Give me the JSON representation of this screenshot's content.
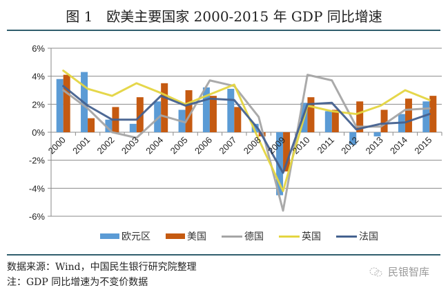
{
  "figure": {
    "title": "图 1　欧美主要国家 2000-2015 年 GDP 同比增速",
    "source": "数据来源：Wind，中国民生银行研究院整理",
    "note": "注：GDP 同比增速为不变价数据",
    "watermark": "民银智库"
  },
  "chart_data": {
    "type": "bar+line",
    "title": "欧美主要国家 2000-2015 年 GDP 同比增速",
    "xlabel": "",
    "ylabel": "",
    "ylim": [
      -6,
      6
    ],
    "yticks": [
      6,
      4,
      2,
      0,
      -2,
      -4,
      -6
    ],
    "ytick_labels": [
      "6%",
      "4%",
      "2%",
      "0%",
      "-2%",
      "-4%",
      "-6%"
    ],
    "grid": true,
    "legend_position": "bottom",
    "categories": [
      "2000",
      "2001",
      "2002",
      "2003",
      "2004",
      "2005",
      "2006",
      "2007",
      "2008",
      "2009",
      "2010",
      "2011",
      "2012",
      "2013",
      "2014",
      "2015"
    ],
    "series": [
      {
        "name": "欧元区",
        "kind": "bar",
        "color": "#5b9bd5",
        "values": [
          3.8,
          4.3,
          0.9,
          0.6,
          2.2,
          1.6,
          3.2,
          3.1,
          0.6,
          -4.5,
          2.1,
          1.5,
          -0.9,
          -0.3,
          1.3,
          2.2
        ]
      },
      {
        "name": "美国",
        "kind": "bar",
        "color": "#c55a11",
        "values": [
          4.1,
          1.0,
          1.8,
          2.5,
          3.5,
          3.0,
          2.6,
          1.8,
          -0.3,
          -2.8,
          2.5,
          1.6,
          2.2,
          1.6,
          2.4,
          2.6
        ]
      },
      {
        "name": "德国",
        "kind": "line",
        "color": "#a5a5a5",
        "values": [
          3.0,
          1.7,
          0.0,
          -0.4,
          1.2,
          0.7,
          3.7,
          3.3,
          1.1,
          -5.6,
          4.1,
          3.7,
          0.4,
          0.4,
          1.6,
          1.7
        ]
      },
      {
        "name": "英国",
        "kind": "line",
        "color": "#e4d541",
        "values": [
          4.4,
          3.1,
          2.6,
          3.5,
          2.8,
          2.0,
          2.7,
          3.4,
          -0.5,
          -4.2,
          1.9,
          1.5,
          1.3,
          1.9,
          3.0,
          2.3
        ]
      },
      {
        "name": "法国",
        "kind": "line",
        "color": "#44618f",
        "values": [
          3.3,
          1.9,
          0.9,
          0.9,
          2.6,
          1.9,
          2.4,
          2.3,
          0.2,
          -2.9,
          2.0,
          2.1,
          0.2,
          0.6,
          0.7,
          1.3
        ]
      }
    ]
  }
}
